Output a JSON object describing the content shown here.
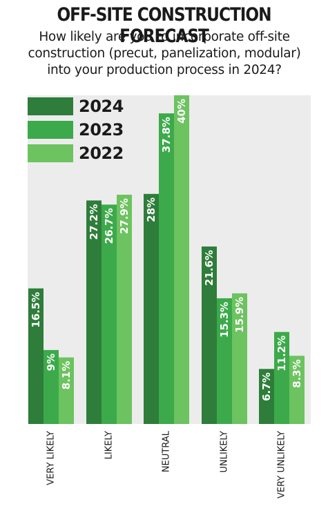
{
  "header": {
    "title": "OFF-SITE CONSTRUCTION FORECAST",
    "subtitle_lines": [
      "How likely are you to incorporate off-site",
      "construction (precut, panelization, modular)",
      "into your production process in 2024?"
    ]
  },
  "chart_data": {
    "type": "bar",
    "title": "OFF-SITE CONSTRUCTION FORECAST",
    "categories": [
      "VERY LIKELY",
      "LIKELY",
      "NEUTRAL",
      "UNLIKELY",
      "VERY UNLIKELY"
    ],
    "series": [
      {
        "name": "2024",
        "color": "#2e7d3a",
        "values": [
          16.5,
          27.2,
          28,
          21.6,
          6.7
        ],
        "labels": [
          "16.5%",
          "27.2%",
          "28%",
          "21.6%",
          "6.7%"
        ]
      },
      {
        "name": "2023",
        "color": "#3caa4a",
        "values": [
          9,
          26.7,
          37.8,
          15.3,
          11.2
        ],
        "labels": [
          "9%",
          "26.7%",
          "37.8%",
          "15.3%",
          "11.2%"
        ]
      },
      {
        "name": "2022",
        "color": "#6cc35f",
        "values": [
          8.1,
          27.9,
          40,
          15.9,
          8.3
        ],
        "labels": [
          "8.1%",
          "27.9%",
          "40%",
          "15.9%",
          "8.3%"
        ]
      }
    ],
    "ylim": [
      0,
      40
    ],
    "grid": false,
    "legend_position": "top-left",
    "background": "#ececec"
  }
}
